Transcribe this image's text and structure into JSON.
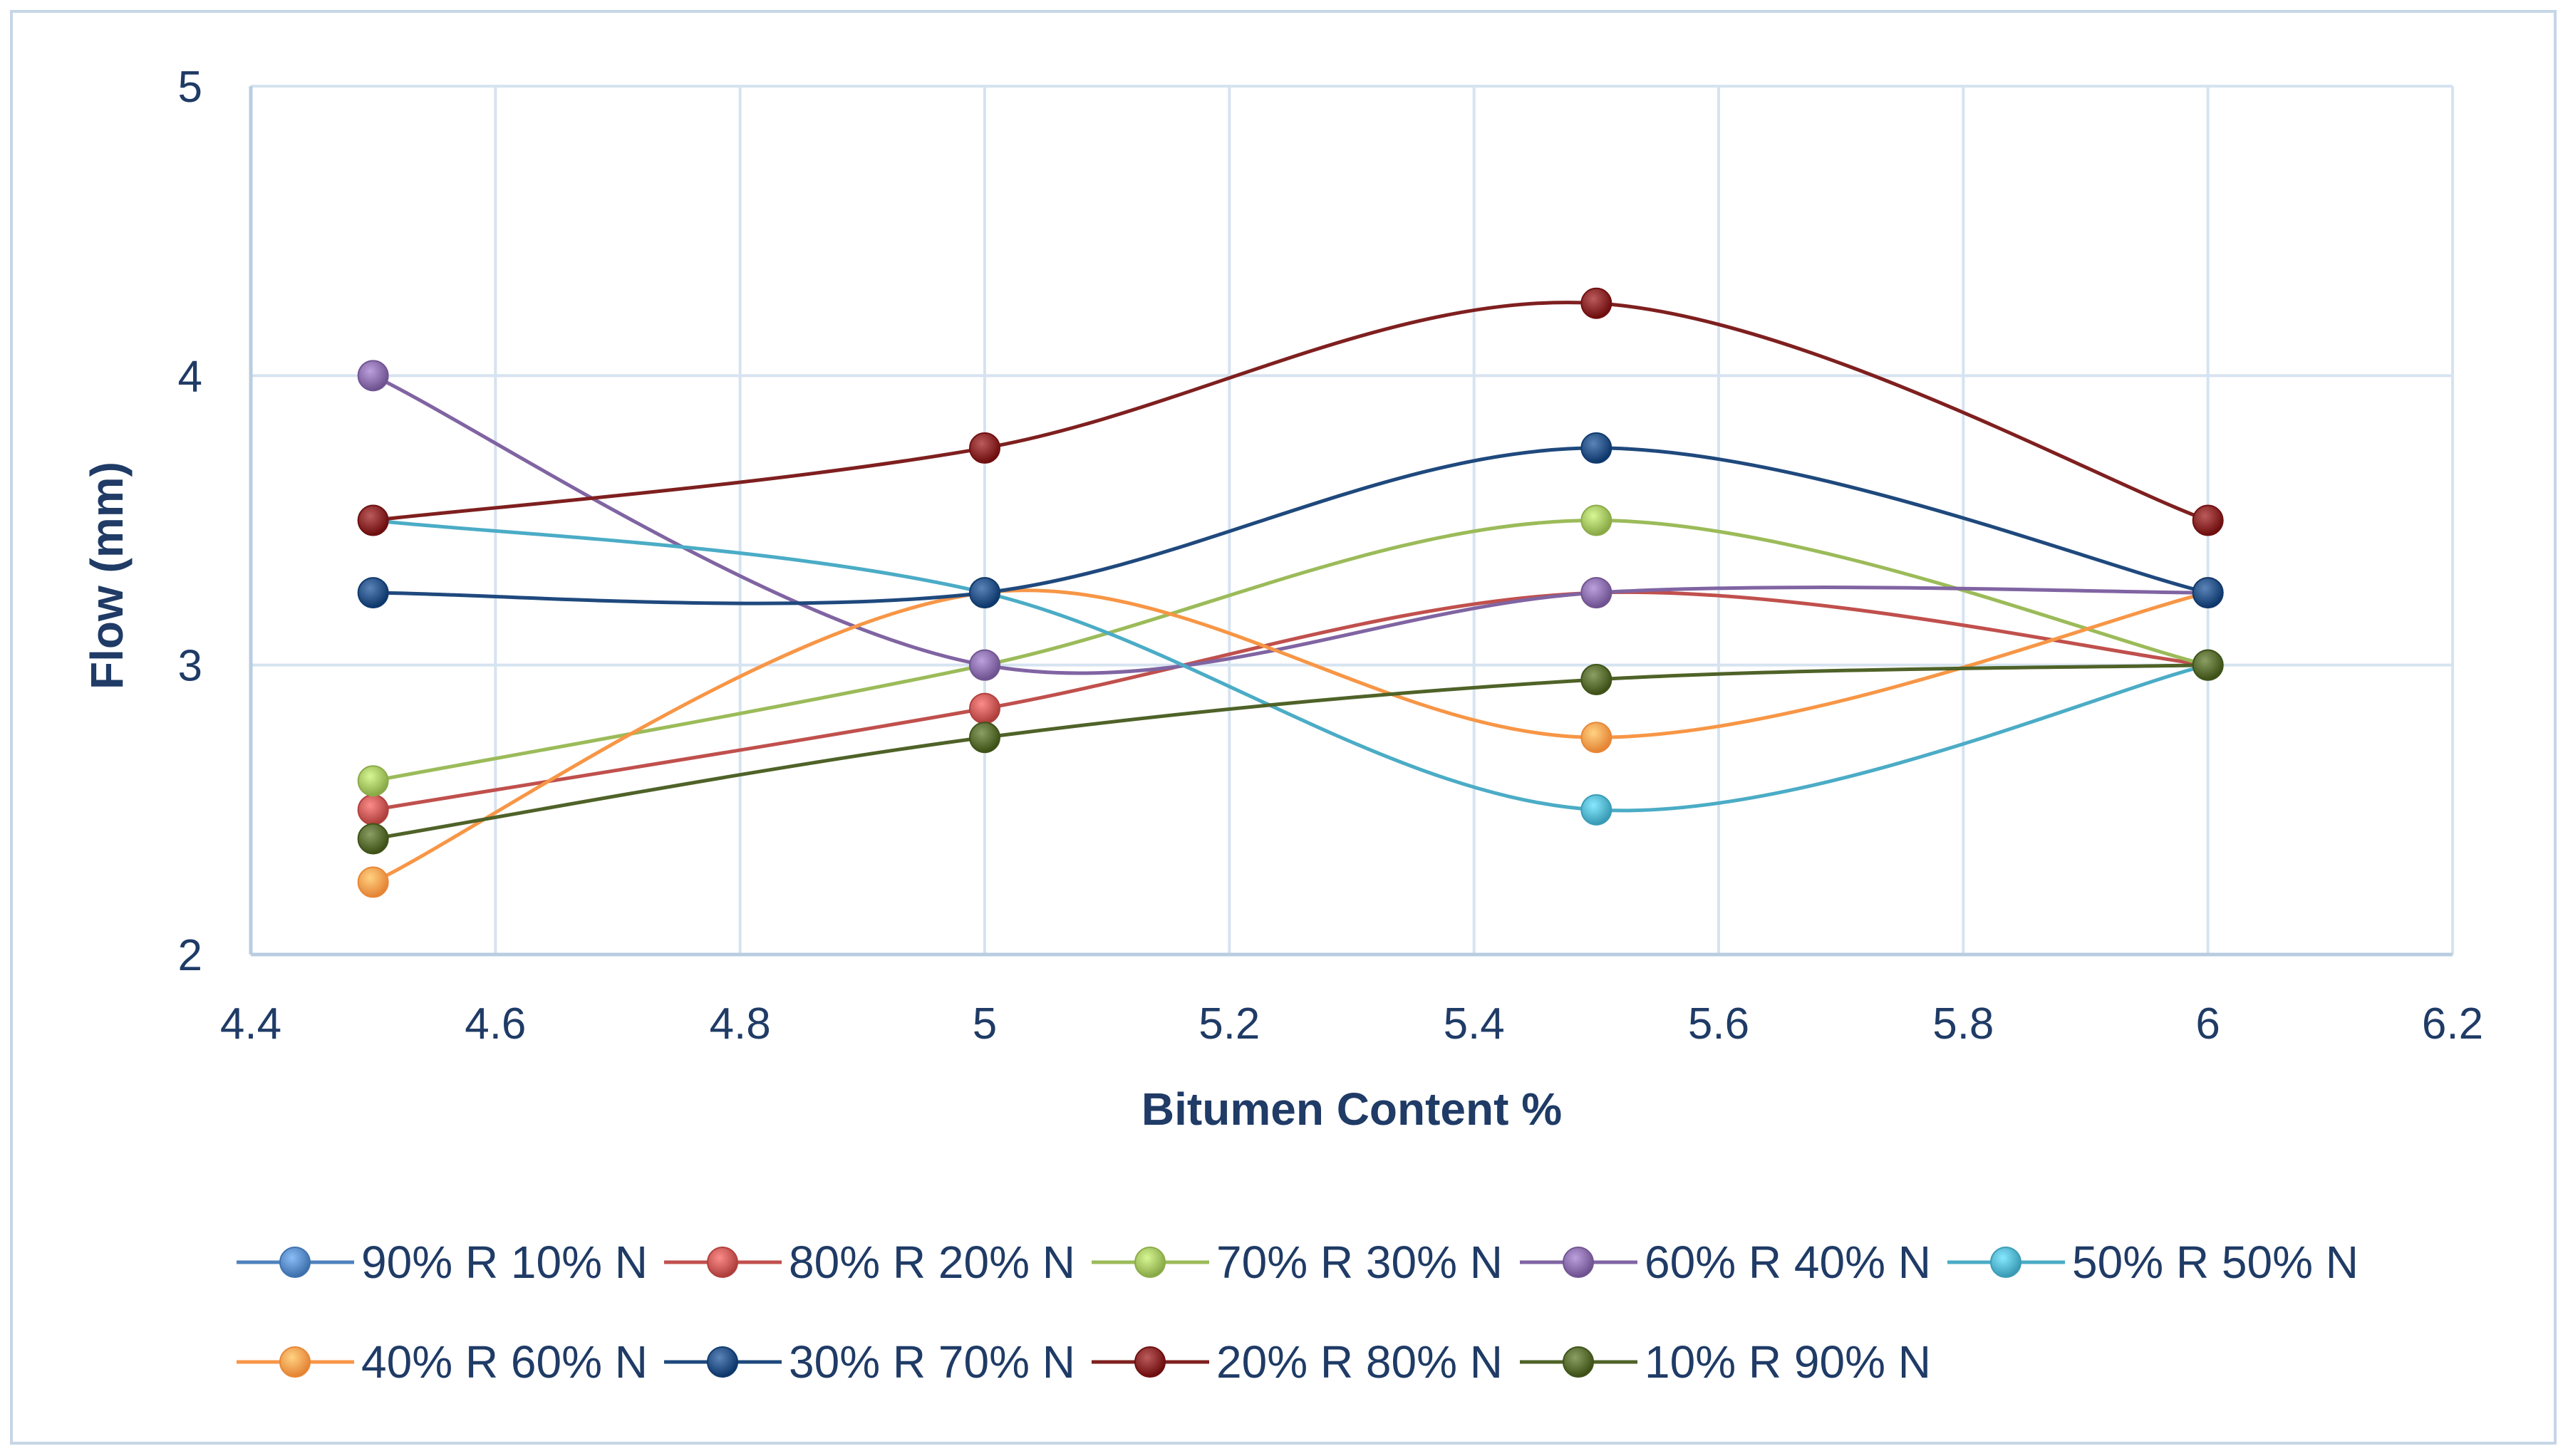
{
  "chart_data": {
    "type": "line",
    "title": "",
    "xlabel": "Bitumen Content %",
    "ylabel": "Flow (mm)",
    "xlim": [
      4.4,
      6.2
    ],
    "ylim": [
      2,
      5
    ],
    "x_ticks": [
      "4.4",
      "4.6",
      "4.8",
      "5",
      "5.2",
      "5.4",
      "5.6",
      "5.8",
      "6",
      "6.2"
    ],
    "y_ticks": [
      "2",
      "3",
      "4",
      "5"
    ],
    "grid": true,
    "smooth": true,
    "legend_position": "bottom",
    "x": [
      4.5,
      5,
      5.5,
      6
    ],
    "series": [
      {
        "name": "90% R 10% N",
        "color": "#4f81bd",
        "values": [
          null,
          null,
          null,
          null
        ]
      },
      {
        "name": "80% R 20% N",
        "color": "#c0504d",
        "values": [
          2.5,
          2.85,
          3.25,
          3.0
        ]
      },
      {
        "name": "70% R 30% N",
        "color": "#9bbb59",
        "values": [
          2.6,
          3.0,
          3.5,
          3.0
        ]
      },
      {
        "name": "60% R 40% N",
        "color": "#8064a2",
        "values": [
          4.0,
          3.0,
          3.25,
          3.25
        ]
      },
      {
        "name": "50% R 50% N",
        "color": "#4bacc6",
        "values": [
          3.5,
          3.25,
          2.5,
          3.0
        ]
      },
      {
        "name": "40% R 60% N",
        "color": "#f79646",
        "values": [
          2.25,
          3.25,
          2.75,
          3.25
        ]
      },
      {
        "name": "30% R 70% N",
        "color": "#1f497d",
        "values": [
          3.25,
          3.25,
          3.75,
          3.25
        ]
      },
      {
        "name": "20% R 80% N",
        "color": "#7f1f1f",
        "values": [
          3.5,
          3.75,
          4.25,
          3.5
        ]
      },
      {
        "name": "10% R 90% N",
        "color": "#4f6228",
        "values": [
          2.4,
          2.75,
          2.95,
          3.0
        ]
      }
    ]
  }
}
